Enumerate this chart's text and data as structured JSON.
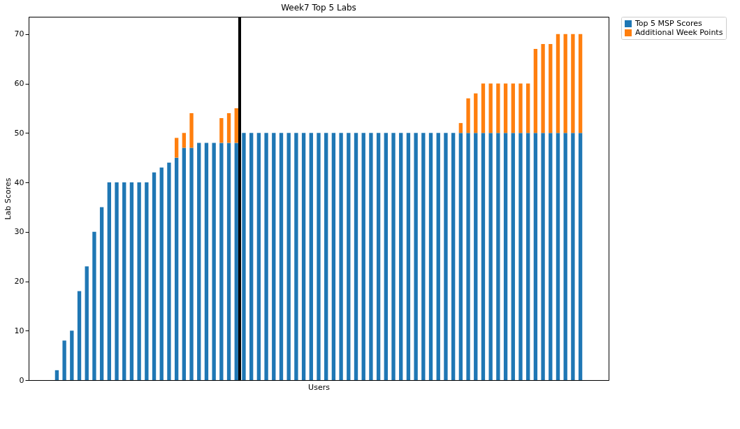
{
  "chart_data": {
    "type": "bar",
    "title": "Week7 Top 5 Labs",
    "xlabel": "Users",
    "ylabel": "Lab Scores",
    "categories": [
      null,
      null,
      null,
      null,
      null,
      null,
      null,
      null,
      null,
      null,
      null,
      null,
      null,
      null,
      null,
      null,
      null,
      null,
      null,
      null,
      null,
      null,
      null,
      null,
      null,
      null,
      null,
      null,
      null,
      null,
      null,
      null,
      null,
      null,
      null,
      null,
      null,
      null,
      null,
      null,
      null,
      null,
      null,
      null,
      null,
      null,
      null,
      null,
      null,
      null,
      null,
      null,
      null,
      null,
      null,
      null,
      null,
      null,
      null,
      null,
      null,
      null,
      null,
      null,
      null,
      null,
      null,
      null,
      null,
      null,
      null
    ],
    "stacked": true,
    "series": [
      {
        "name": "Top 5 MSP Scores",
        "color": "#1f77b4",
        "values": [
          2,
          8,
          10,
          18,
          23,
          30,
          35,
          40,
          40,
          40,
          40,
          40,
          40,
          42,
          43,
          44,
          45,
          47,
          47,
          48,
          48,
          48,
          48,
          48,
          48,
          50,
          50,
          50,
          50,
          50,
          50,
          50,
          50,
          50,
          50,
          50,
          50,
          50,
          50,
          50,
          50,
          50,
          50,
          50,
          50,
          50,
          50,
          50,
          50,
          50,
          50,
          50,
          50,
          50,
          50,
          50,
          50,
          50,
          50,
          50,
          50,
          50,
          50,
          50,
          50,
          50,
          50,
          50,
          50,
          50,
          50
        ]
      },
      {
        "name": "Additional Week Points",
        "color": "#ff7f0e",
        "values": [
          0,
          0,
          0,
          0,
          0,
          0,
          0,
          0,
          0,
          0,
          0,
          0,
          0,
          0,
          0,
          0,
          4,
          3,
          7,
          0,
          0,
          0,
          5,
          6,
          7,
          0,
          0,
          0,
          0,
          0,
          0,
          0,
          0,
          0,
          0,
          0,
          0,
          0,
          0,
          0,
          0,
          0,
          0,
          0,
          0,
          0,
          0,
          0,
          0,
          0,
          0,
          0,
          0,
          0,
          2,
          7,
          8,
          10,
          10,
          10,
          10,
          10,
          10,
          10,
          17,
          18,
          18,
          20,
          20,
          20,
          20
        ]
      }
    ],
    "ylim": [
      0,
      73.5
    ],
    "yticks": [
      0,
      10,
      20,
      30,
      40,
      50,
      60,
      70
    ],
    "legend": "top right"
  }
}
